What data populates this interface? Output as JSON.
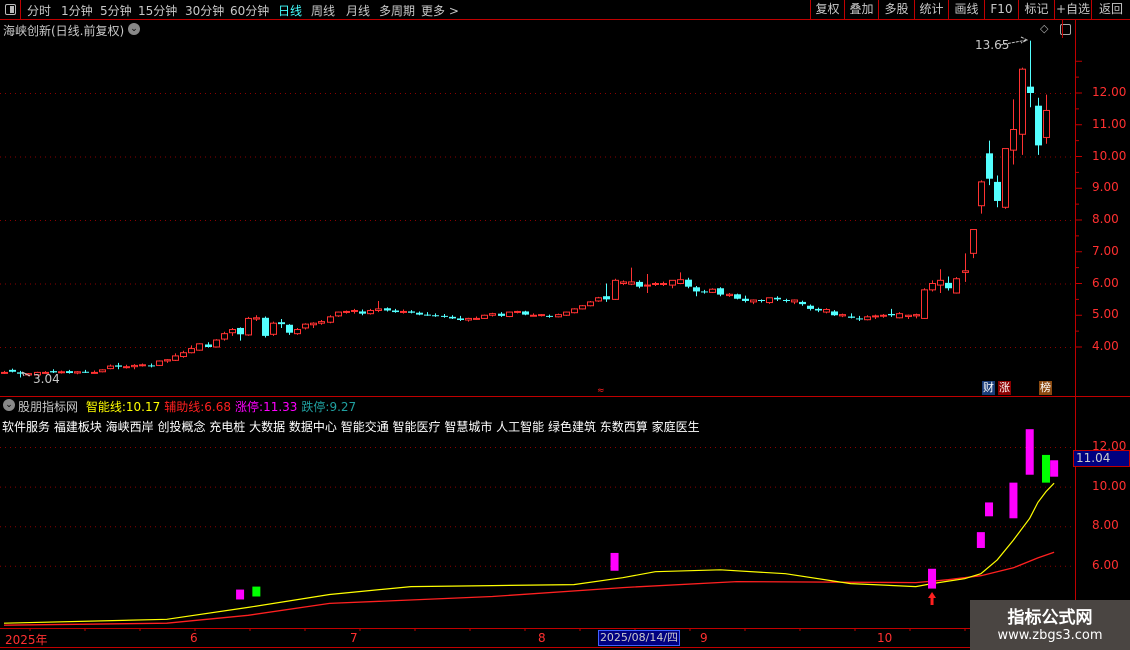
{
  "toolbar": {
    "periods": [
      "分时",
      "1分钟",
      "5分钟",
      "15分钟",
      "30分钟",
      "60分钟",
      "日线",
      "周线",
      "月线",
      "多周期",
      "更多 >"
    ],
    "active": "日线",
    "right_buttons": [
      "复权",
      "叠加",
      "多股",
      "统计",
      "画线",
      "F10",
      "标记",
      "+自选",
      "返回"
    ]
  },
  "main": {
    "title": "海峡创新(日线.前复权)",
    "high_label": "13.65",
    "low_label": "3.04",
    "y_ticks": [
      "12.00",
      "11.00",
      "10.00",
      "9.00",
      "8.00",
      "7.00",
      "6.00",
      "5.00",
      "4.00"
    ],
    "badges": [
      "财",
      "涨",
      "榜"
    ]
  },
  "indicator": {
    "name": "股朋指标网",
    "lines": [
      {
        "label": "智能线:",
        "value": "10.17",
        "color": "#ffff00"
      },
      {
        "label": "辅助线:",
        "value": "6.68",
        "color": "#ff2020"
      },
      {
        "label": "涨停:",
        "value": "11.33",
        "color": "#ff00ff"
      },
      {
        "label": "跌停:",
        "value": "9.27",
        "color": "#20a0a0"
      }
    ],
    "concepts": "软件服务 福建板块 海峡西岸 创投概念 充电桩 大数据 数据中心 智能交通 智能医疗 智慧城市 人工智能 绿色建筑 东数西算 家庭医生",
    "y_ticks": [
      "12.00",
      "10.00",
      "8.00",
      "6.00"
    ],
    "current_value": "11.04"
  },
  "date_axis": {
    "labels": [
      "2025年",
      "6",
      "7",
      "8",
      "9",
      "10"
    ],
    "cursor_date": "2025/08/14/四"
  },
  "watermark": {
    "title": "指标公式网",
    "url": "www.zbgs3.com"
  },
  "colors": {
    "up": "#ff3232",
    "down": "#54ffff",
    "grid": "#8b0000",
    "accent": "#c00000"
  },
  "chart_data": {
    "type": "candlestick",
    "ohlc_note": "[open,high,low,close]",
    "candles": [
      [
        3.2,
        3.25,
        3.15,
        3.2
      ],
      [
        3.28,
        3.32,
        3.2,
        3.22
      ],
      [
        3.2,
        3.25,
        3.04,
        3.16
      ],
      [
        3.12,
        3.18,
        3.08,
        3.16
      ],
      [
        3.12,
        3.22,
        3.1,
        3.2
      ],
      [
        3.2,
        3.24,
        3.16,
        3.2
      ],
      [
        3.24,
        3.3,
        3.18,
        3.2
      ],
      [
        3.2,
        3.26,
        3.16,
        3.22
      ],
      [
        3.24,
        3.28,
        3.16,
        3.18
      ],
      [
        3.18,
        3.24,
        3.14,
        3.22
      ],
      [
        3.22,
        3.28,
        3.18,
        3.2
      ],
      [
        3.2,
        3.26,
        3.16,
        3.2
      ],
      [
        3.22,
        3.3,
        3.2,
        3.28
      ],
      [
        3.32,
        3.45,
        3.3,
        3.4
      ],
      [
        3.42,
        3.5,
        3.3,
        3.38
      ],
      [
        3.36,
        3.44,
        3.32,
        3.38
      ],
      [
        3.38,
        3.46,
        3.3,
        3.42
      ],
      [
        3.42,
        3.48,
        3.38,
        3.44
      ],
      [
        3.42,
        3.48,
        3.36,
        3.4
      ],
      [
        3.42,
        3.58,
        3.4,
        3.56
      ],
      [
        3.56,
        3.62,
        3.5,
        3.6
      ],
      [
        3.58,
        3.8,
        3.56,
        3.72
      ],
      [
        3.7,
        3.88,
        3.66,
        3.82
      ],
      [
        3.82,
        4.05,
        3.8,
        3.95
      ],
      [
        3.9,
        4.12,
        3.88,
        4.1
      ],
      [
        4.08,
        4.15,
        3.98,
        4.0
      ],
      [
        4.0,
        4.25,
        3.98,
        4.22
      ],
      [
        4.25,
        4.48,
        4.2,
        4.42
      ],
      [
        4.45,
        4.6,
        4.35,
        4.55
      ],
      [
        4.6,
        4.62,
        4.2,
        4.4
      ],
      [
        4.38,
        4.95,
        4.35,
        4.9
      ],
      [
        4.88,
        5.0,
        4.82,
        4.92
      ],
      [
        4.92,
        4.96,
        4.3,
        4.35
      ],
      [
        4.4,
        4.8,
        4.35,
        4.75
      ],
      [
        4.78,
        4.88,
        4.6,
        4.72
      ],
      [
        4.7,
        4.72,
        4.38,
        4.45
      ],
      [
        4.42,
        4.6,
        4.38,
        4.55
      ],
      [
        4.6,
        4.75,
        4.55,
        4.72
      ],
      [
        4.7,
        4.78,
        4.6,
        4.75
      ],
      [
        4.75,
        4.85,
        4.7,
        4.8
      ],
      [
        4.78,
        5.0,
        4.75,
        4.95
      ],
      [
        4.98,
        5.12,
        4.95,
        5.1
      ],
      [
        5.1,
        5.15,
        5.05,
        5.12
      ],
      [
        5.12,
        5.2,
        5.05,
        5.15
      ],
      [
        5.12,
        5.18,
        5.0,
        5.05
      ],
      [
        5.05,
        5.2,
        5.02,
        5.15
      ],
      [
        5.15,
        5.45,
        5.1,
        5.2
      ],
      [
        5.22,
        5.25,
        5.12,
        5.15
      ],
      [
        5.15,
        5.2,
        5.08,
        5.1
      ],
      [
        5.1,
        5.18,
        5.05,
        5.12
      ],
      [
        5.12,
        5.16,
        5.06,
        5.08
      ],
      [
        5.08,
        5.12,
        5.0,
        5.02
      ],
      [
        5.02,
        5.1,
        4.98,
        5.0
      ],
      [
        5.0,
        5.06,
        4.95,
        4.98
      ],
      [
        4.98,
        5.04,
        4.92,
        4.95
      ],
      [
        4.95,
        5.0,
        4.88,
        4.9
      ],
      [
        4.9,
        4.98,
        4.82,
        4.85
      ],
      [
        4.85,
        4.92,
        4.8,
        4.9
      ],
      [
        4.88,
        4.96,
        4.86,
        4.9
      ],
      [
        4.9,
        5.02,
        4.88,
        5.0
      ],
      [
        5.0,
        5.08,
        4.96,
        5.05
      ],
      [
        5.05,
        5.1,
        4.95,
        4.98
      ],
      [
        4.96,
        5.12,
        4.94,
        5.1
      ],
      [
        5.1,
        5.14,
        5.06,
        5.12
      ],
      [
        5.12,
        5.14,
        5.0,
        5.02
      ],
      [
        5.0,
        5.06,
        4.96,
        5.0
      ],
      [
        5.0,
        5.04,
        4.96,
        5.02
      ],
      [
        4.98,
        5.02,
        4.92,
        4.95
      ],
      [
        4.95,
        5.05,
        4.93,
        5.02
      ],
      [
        5.0,
        5.12,
        4.98,
        5.1
      ],
      [
        5.08,
        5.22,
        5.06,
        5.2
      ],
      [
        5.2,
        5.32,
        5.18,
        5.3
      ],
      [
        5.3,
        5.45,
        5.28,
        5.42
      ],
      [
        5.45,
        5.58,
        5.42,
        5.55
      ],
      [
        5.6,
        6.0,
        5.42,
        5.5
      ],
      [
        5.5,
        6.15,
        5.48,
        6.1
      ],
      [
        6.0,
        6.1,
        5.95,
        6.05
      ],
      [
        5.98,
        6.5,
        5.95,
        6.05
      ],
      [
        6.05,
        6.1,
        5.85,
        5.9
      ],
      [
        5.95,
        6.3,
        5.7,
        5.95
      ],
      [
        5.98,
        6.05,
        5.92,
        6.0
      ],
      [
        5.98,
        6.06,
        5.92,
        6.0
      ],
      [
        5.95,
        6.1,
        5.85,
        6.1
      ],
      [
        6.0,
        6.35,
        6.0,
        6.12
      ],
      [
        6.12,
        6.18,
        5.85,
        5.9
      ],
      [
        5.88,
        5.92,
        5.6,
        5.75
      ],
      [
        5.75,
        5.8,
        5.68,
        5.72
      ],
      [
        5.72,
        5.85,
        5.7,
        5.82
      ],
      [
        5.85,
        5.88,
        5.6,
        5.65
      ],
      [
        5.62,
        5.7,
        5.58,
        5.66
      ],
      [
        5.66,
        5.68,
        5.5,
        5.52
      ],
      [
        5.52,
        5.62,
        5.4,
        5.45
      ],
      [
        5.42,
        5.5,
        5.35,
        5.48
      ],
      [
        5.48,
        5.5,
        5.4,
        5.45
      ],
      [
        5.4,
        5.56,
        5.36,
        5.55
      ],
      [
        5.55,
        5.6,
        5.45,
        5.5
      ],
      [
        5.48,
        5.52,
        5.4,
        5.45
      ],
      [
        5.42,
        5.5,
        5.35,
        5.48
      ],
      [
        5.42,
        5.46,
        5.3,
        5.35
      ],
      [
        5.3,
        5.34,
        5.15,
        5.2
      ],
      [
        5.2,
        5.24,
        5.1,
        5.15
      ],
      [
        5.1,
        5.22,
        5.06,
        5.18
      ],
      [
        5.12,
        5.16,
        4.98,
        5.0
      ],
      [
        4.98,
        5.05,
        4.94,
        5.02
      ],
      [
        4.96,
        5.06,
        4.9,
        4.92
      ],
      [
        4.9,
        4.98,
        4.82,
        4.88
      ],
      [
        4.86,
        5.0,
        4.84,
        4.95
      ],
      [
        4.95,
        5.02,
        4.88,
        4.98
      ],
      [
        4.98,
        5.04,
        4.92,
        5.0
      ],
      [
        5.04,
        5.2,
        4.95,
        5.0
      ],
      [
        4.92,
        5.1,
        4.9,
        5.05
      ],
      [
        4.96,
        5.02,
        4.88,
        5.0
      ],
      [
        4.98,
        5.05,
        4.9,
        5.02
      ],
      [
        4.9,
        5.85,
        4.88,
        5.8
      ],
      [
        5.8,
        6.1,
        5.75,
        6.0
      ],
      [
        5.95,
        6.45,
        5.7,
        6.1
      ],
      [
        6.02,
        6.22,
        5.78,
        5.85
      ],
      [
        5.7,
        6.2,
        5.68,
        6.15
      ],
      [
        6.35,
        6.95,
        6.05,
        6.4
      ],
      [
        6.95,
        7.7,
        6.8,
        7.7
      ],
      [
        8.45,
        9.25,
        8.2,
        9.2
      ],
      [
        10.1,
        10.5,
        9.1,
        9.3
      ],
      [
        9.2,
        9.4,
        8.4,
        8.6
      ],
      [
        8.4,
        10.25,
        8.35,
        10.25
      ],
      [
        10.2,
        11.8,
        9.75,
        10.85
      ],
      [
        10.7,
        12.8,
        10.05,
        12.75
      ],
      [
        12.2,
        13.65,
        11.55,
        12.0
      ],
      [
        11.6,
        11.85,
        10.05,
        10.35
      ],
      [
        10.6,
        11.95,
        10.4,
        11.45
      ]
    ],
    "indicator": {
      "smart_line": [
        [
          0,
          3.1
        ],
        [
          20,
          3.3
        ],
        [
          30,
          3.9
        ],
        [
          40,
          4.55
        ],
        [
          50,
          4.95
        ],
        [
          60,
          5.0
        ],
        [
          70,
          5.05
        ],
        [
          76,
          5.4
        ],
        [
          80,
          5.7
        ],
        [
          88,
          5.8
        ],
        [
          96,
          5.6
        ],
        [
          104,
          5.1
        ],
        [
          112,
          4.95
        ],
        [
          114,
          5.1
        ],
        [
          118,
          5.35
        ],
        [
          120,
          5.6
        ],
        [
          122,
          6.3
        ],
        [
          124,
          7.3
        ],
        [
          126,
          8.4
        ],
        [
          127,
          9.2
        ],
        [
          128,
          9.75
        ],
        [
          129,
          10.17
        ]
      ],
      "aux_line": [
        [
          0,
          3.0
        ],
        [
          20,
          3.1
        ],
        [
          30,
          3.5
        ],
        [
          40,
          4.1
        ],
        [
          60,
          4.45
        ],
        [
          76,
          4.9
        ],
        [
          90,
          5.2
        ],
        [
          112,
          5.15
        ],
        [
          116,
          5.3
        ],
        [
          120,
          5.5
        ],
        [
          124,
          5.9
        ],
        [
          127,
          6.4
        ],
        [
          129,
          6.68
        ]
      ],
      "signal_bars": [
        [
          29,
          4.3,
          4.8,
          "#ff00ff"
        ],
        [
          31,
          4.45,
          4.95,
          "#00ff00"
        ],
        [
          75,
          5.75,
          6.65,
          "#ff00ff"
        ],
        [
          114,
          4.85,
          5.85,
          "#ff00ff"
        ],
        [
          120,
          6.9,
          7.7,
          "#ff00ff"
        ],
        [
          121,
          8.5,
          9.2,
          "#ff00ff"
        ],
        [
          124,
          8.4,
          10.2,
          "#ff00ff"
        ],
        [
          126,
          10.6,
          12.9,
          "#ff00ff"
        ],
        [
          128,
          10.2,
          11.6,
          "#00ff00"
        ],
        [
          129,
          10.5,
          11.33,
          "#ff00ff"
        ]
      ],
      "buy_arrow_index": 114
    }
  }
}
